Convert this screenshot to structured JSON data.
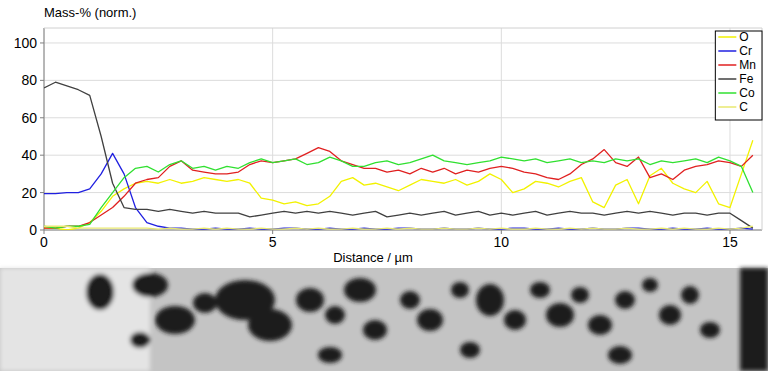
{
  "chart_data": {
    "type": "line",
    "ylabel": "Mass-% (norm.)",
    "xlabel": "Distance / µm",
    "xlim": [
      0,
      15.7
    ],
    "ylim": [
      0,
      108
    ],
    "xticks": [
      0,
      5,
      10,
      15
    ],
    "yticks": [
      0,
      20,
      40,
      60,
      80,
      100
    ],
    "grid": true,
    "legend": "upper right",
    "x": [
      0,
      0.25,
      0.5,
      0.75,
      1,
      1.25,
      1.5,
      1.75,
      2,
      2.25,
      2.5,
      2.75,
      3,
      3.25,
      3.5,
      3.75,
      4,
      4.25,
      4.5,
      4.75,
      5,
      5.25,
      5.5,
      5.75,
      6,
      6.25,
      6.5,
      6.75,
      7,
      7.25,
      7.5,
      7.75,
      8,
      8.25,
      8.5,
      8.75,
      9,
      9.25,
      9.5,
      9.75,
      10,
      10.25,
      10.5,
      10.75,
      11,
      11.25,
      11.5,
      11.75,
      12,
      12.25,
      12.5,
      12.75,
      13,
      13.25,
      13.5,
      13.75,
      14,
      14.25,
      14.5,
      14.75,
      15,
      15.25,
      15.5
    ],
    "series": [
      {
        "name": "O",
        "color": "#f2f200",
        "values": [
          1,
          1,
          0,
          1,
          4,
          10,
          18,
          22,
          25,
          26,
          25,
          27,
          25,
          26,
          28,
          27,
          26,
          27,
          25,
          17,
          16,
          14,
          15,
          13,
          14,
          18,
          26,
          28,
          24,
          25,
          23,
          21,
          24,
          27,
          26,
          25,
          27,
          24,
          26,
          30,
          27,
          20,
          22,
          26,
          25,
          23,
          26,
          28,
          15,
          12,
          24,
          27,
          14,
          29,
          33,
          25,
          22,
          20,
          26,
          14,
          12,
          30,
          48
        ]
      },
      {
        "name": "Cr",
        "color": "#2020e0",
        "values": [
          19.5,
          19.5,
          20,
          20,
          22,
          30,
          41,
          30,
          12,
          4,
          2,
          1,
          1,
          0.5,
          0.5,
          1,
          0.5,
          0.5,
          1,
          0.5,
          0.5,
          1,
          1,
          0.5,
          0.5,
          1,
          0.5,
          0.5,
          1,
          0.5,
          0.5,
          1,
          1,
          0.5,
          0.5,
          1,
          0.5,
          0.5,
          1,
          0.5,
          0.5,
          1,
          1,
          0.5,
          0.5,
          1,
          0.5,
          0.5,
          1,
          0.5,
          0.5,
          1,
          1,
          0.5,
          0.5,
          1,
          0.5,
          0.5,
          1,
          0.5,
          0.5,
          1,
          0.5
        ]
      },
      {
        "name": "Mn",
        "color": "#e02020",
        "values": [
          1,
          1,
          2,
          2,
          4,
          8,
          12,
          18,
          25,
          27,
          28,
          34,
          37,
          32,
          31,
          30,
          30,
          31,
          35,
          37,
          36,
          37,
          38,
          41,
          44,
          42,
          37,
          35,
          33,
          33,
          31,
          32,
          30,
          33,
          31,
          33,
          30,
          32,
          31,
          33,
          34,
          33,
          31,
          30,
          28,
          27,
          30,
          35,
          38,
          43,
          36,
          34,
          39,
          28,
          30,
          27,
          32,
          34,
          35,
          37,
          36,
          34,
          40
        ]
      },
      {
        "name": "Fe",
        "color": "#404040",
        "values": [
          76,
          79,
          77,
          75,
          72,
          50,
          25,
          12,
          11,
          11,
          10,
          11,
          10,
          9,
          10,
          9,
          9,
          9,
          7,
          8,
          9,
          10,
          9,
          10,
          9,
          10,
          9,
          8,
          9,
          10,
          7,
          8,
          9,
          8,
          9,
          10,
          8,
          9,
          10,
          8,
          9,
          8,
          9,
          10,
          8,
          9,
          10,
          9,
          9,
          8,
          9,
          10,
          9,
          10,
          9,
          8,
          9,
          9,
          8,
          9,
          9,
          5,
          1
        ]
      },
      {
        "name": "Co",
        "color": "#30e030",
        "values": [
          2,
          1,
          2,
          2,
          3,
          12,
          20,
          28,
          33,
          34,
          31,
          35,
          37,
          33,
          34,
          32,
          34,
          33,
          36,
          38,
          36,
          37,
          38,
          35,
          36,
          39,
          37,
          34,
          34,
          36,
          37,
          35,
          36,
          38,
          40,
          37,
          36,
          35,
          36,
          37,
          39,
          38,
          37,
          38,
          36,
          37,
          38,
          36,
          37,
          36,
          38,
          37,
          38,
          35,
          37,
          36,
          37,
          38,
          36,
          39,
          37,
          34,
          20
        ]
      },
      {
        "name": "C",
        "color": "#e8e870",
        "values": [
          2,
          2,
          2,
          1,
          1,
          1,
          1,
          1,
          1,
          1,
          0.5,
          1,
          0.5,
          0.5,
          1,
          0.5,
          1,
          0.5,
          0.5,
          1,
          0.5,
          0.5,
          1,
          0.5,
          1,
          0.5,
          0.5,
          1,
          0.5,
          0.5,
          1,
          0.5,
          1,
          0.5,
          0.5,
          1,
          0.5,
          0.5,
          1,
          0.5,
          1,
          0.5,
          0.5,
          1,
          0.5,
          0.5,
          1,
          0.5,
          1,
          0.5,
          0.5,
          1,
          0.5,
          0.5,
          1,
          0.5,
          1,
          0.5,
          0.5,
          1,
          0.5,
          1,
          2
        ]
      }
    ]
  }
}
